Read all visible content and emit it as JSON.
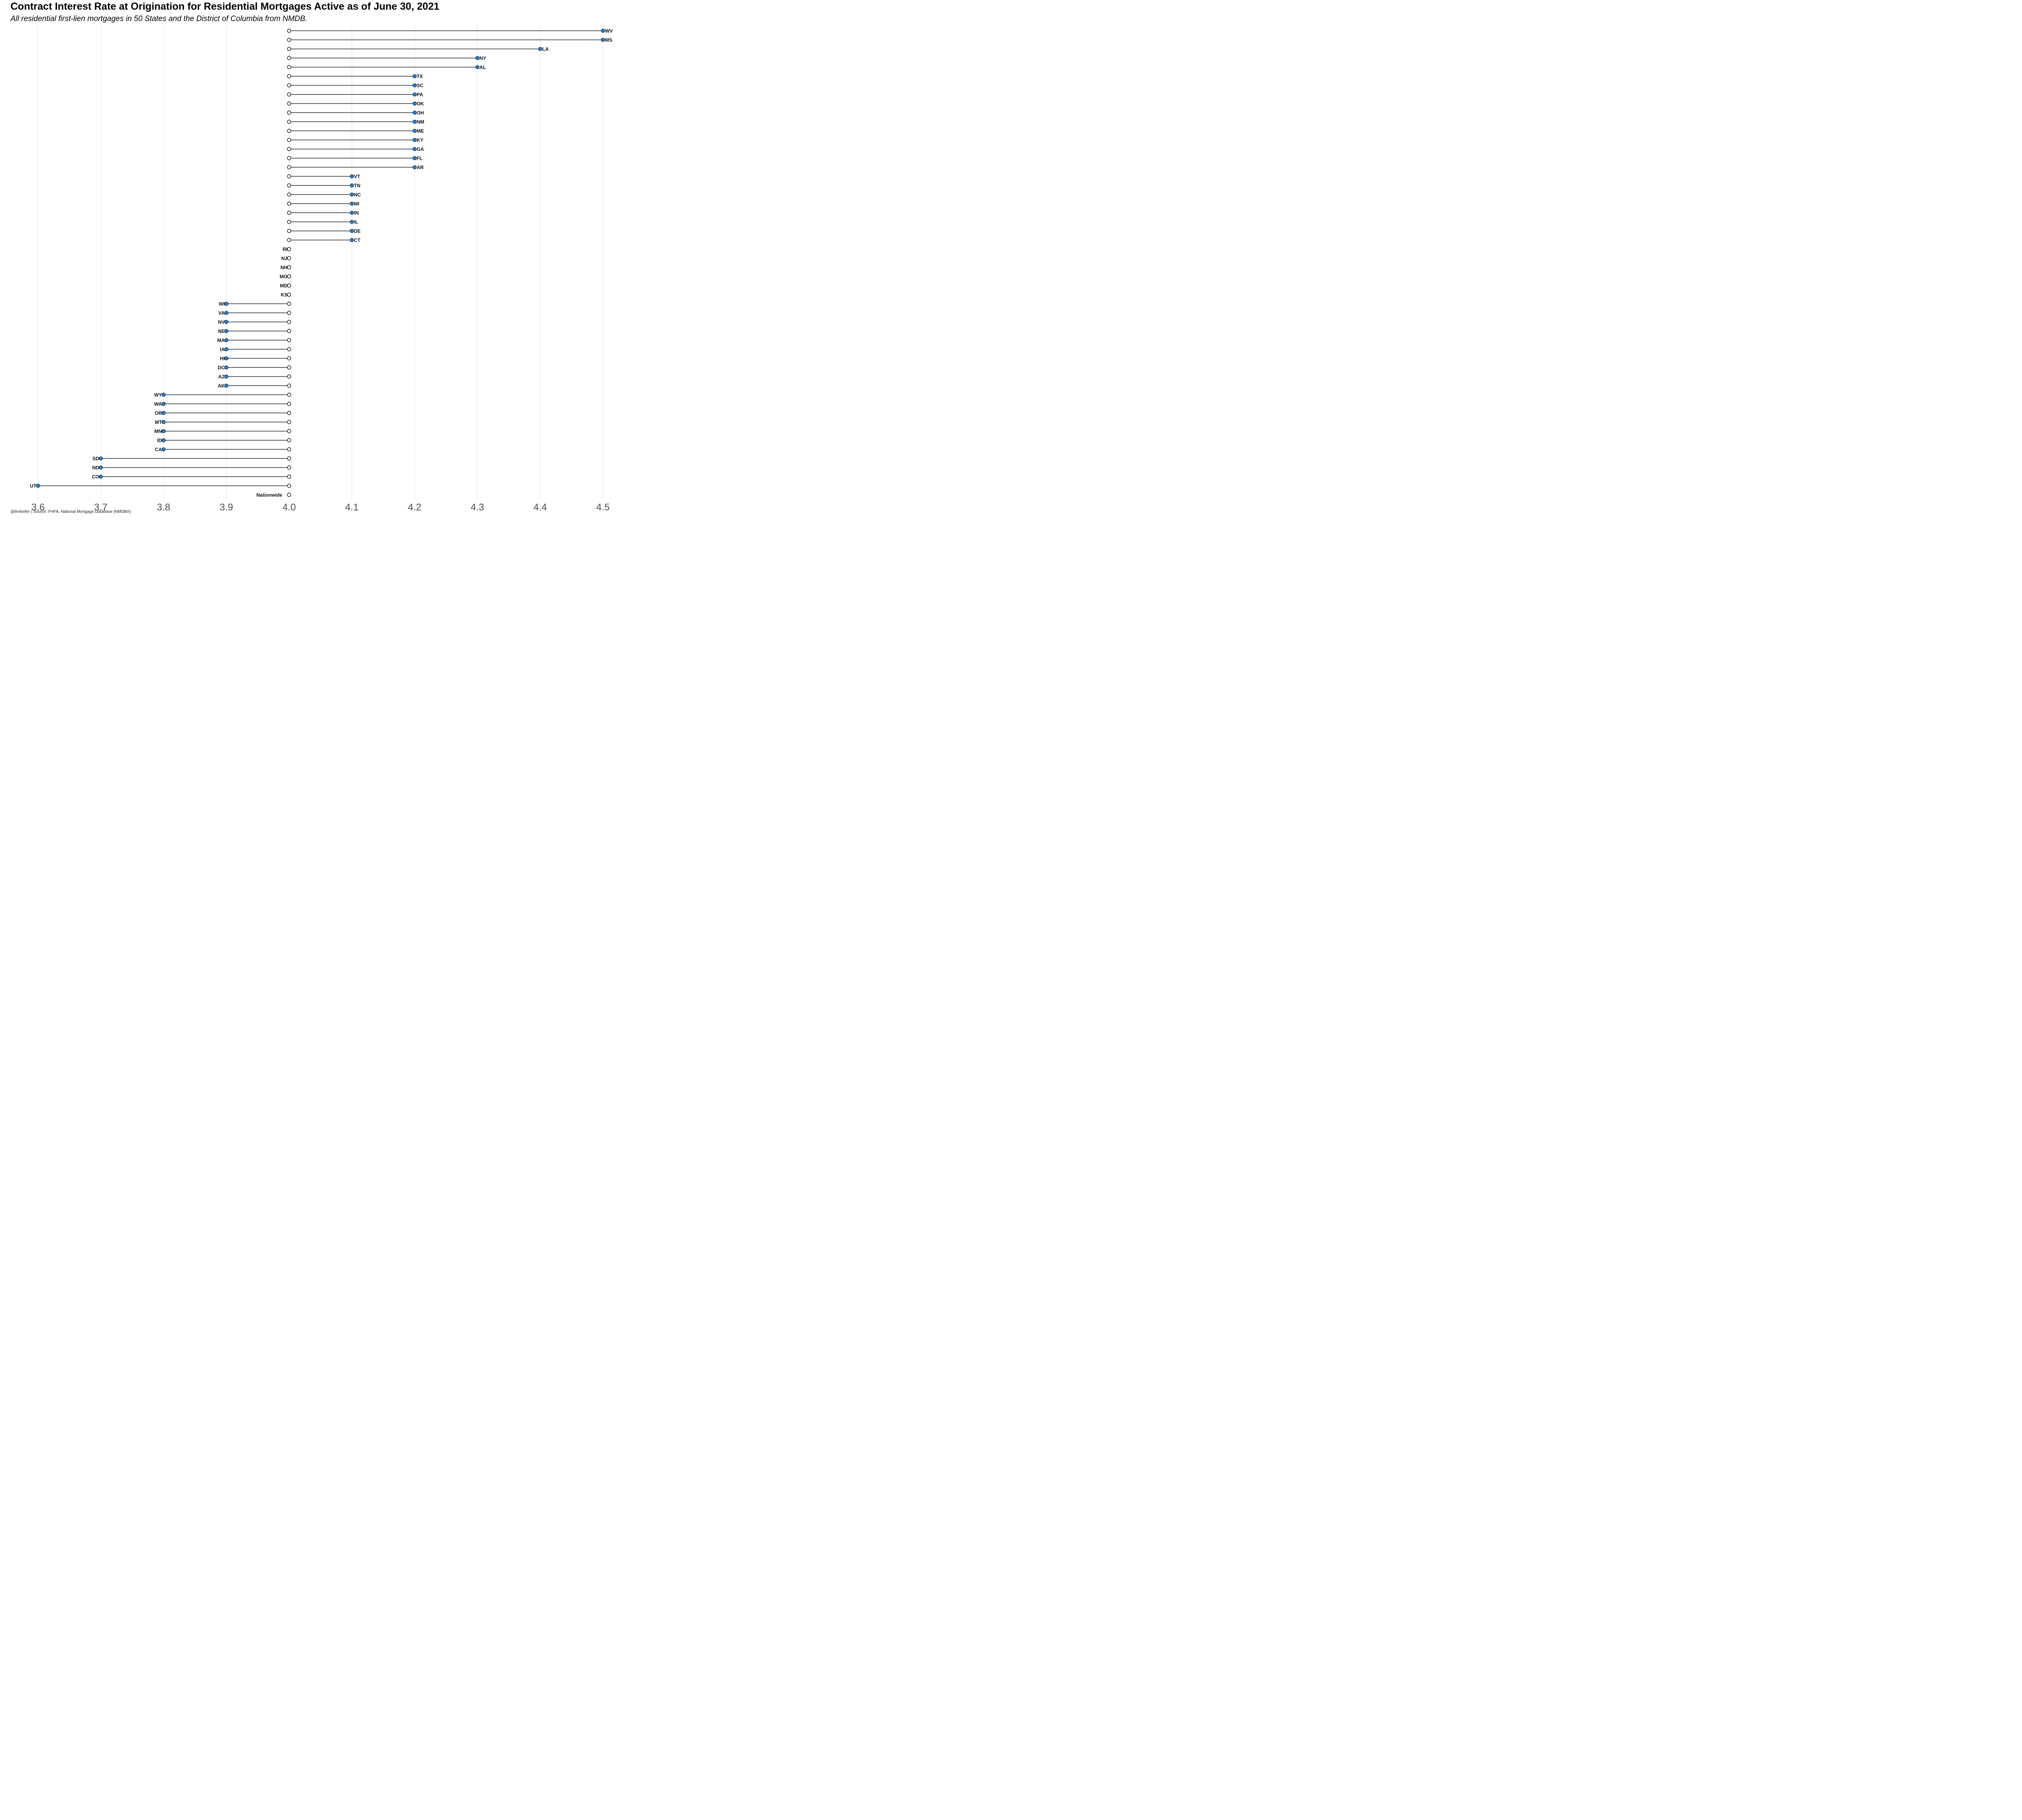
{
  "chart_data": {
    "type": "dot-range",
    "title": "Contract Interest Rate at Origination for Residential Mortgages Active as of June 30, 2021",
    "subtitle": "All residential first-lien mortgages in 50 States and the District of Columbia from NMDB.",
    "caption": "@lenkiefer | Source: FHFA, National Mortgage Database (NMDB®)",
    "baseline_label": "Nationwide",
    "baseline_value": 4.0,
    "xlim": [
      3.6,
      4.5
    ],
    "x_ticks": [
      "3.6",
      "3.7",
      "3.8",
      "3.9",
      "4.0",
      "4.1",
      "4.2",
      "4.3",
      "4.4",
      "4.5"
    ],
    "grid": true,
    "colors": {
      "point": "#1e88e5",
      "baseline_point": "#ffffff",
      "segment": "#000000",
      "grid": "#ebebeb"
    },
    "states": [
      {
        "state": "WV",
        "value": 4.5
      },
      {
        "state": "MS",
        "value": 4.5
      },
      {
        "state": "LA",
        "value": 4.4
      },
      {
        "state": "NY",
        "value": 4.3
      },
      {
        "state": "AL",
        "value": 4.3
      },
      {
        "state": "TX",
        "value": 4.2
      },
      {
        "state": "SC",
        "value": 4.2
      },
      {
        "state": "PA",
        "value": 4.2
      },
      {
        "state": "OK",
        "value": 4.2
      },
      {
        "state": "OH",
        "value": 4.2
      },
      {
        "state": "NM",
        "value": 4.2
      },
      {
        "state": "ME",
        "value": 4.2
      },
      {
        "state": "KY",
        "value": 4.2
      },
      {
        "state": "GA",
        "value": 4.2
      },
      {
        "state": "FL",
        "value": 4.2
      },
      {
        "state": "AR",
        "value": 4.2
      },
      {
        "state": "VT",
        "value": 4.1
      },
      {
        "state": "TN",
        "value": 4.1
      },
      {
        "state": "NC",
        "value": 4.1
      },
      {
        "state": "MI",
        "value": 4.1
      },
      {
        "state": "IN",
        "value": 4.1
      },
      {
        "state": "IL",
        "value": 4.1
      },
      {
        "state": "DE",
        "value": 4.1
      },
      {
        "state": "CT",
        "value": 4.1
      },
      {
        "state": "RI",
        "value": 4.0
      },
      {
        "state": "NJ",
        "value": 4.0
      },
      {
        "state": "NH",
        "value": 4.0
      },
      {
        "state": "MO",
        "value": 4.0
      },
      {
        "state": "MD",
        "value": 4.0
      },
      {
        "state": "KS",
        "value": 4.0
      },
      {
        "state": "WI",
        "value": 3.9
      },
      {
        "state": "VA",
        "value": 3.9
      },
      {
        "state": "NV",
        "value": 3.9
      },
      {
        "state": "NE",
        "value": 3.9
      },
      {
        "state": "MA",
        "value": 3.9
      },
      {
        "state": "IA",
        "value": 3.9
      },
      {
        "state": "HI",
        "value": 3.9
      },
      {
        "state": "DC",
        "value": 3.9
      },
      {
        "state": "AZ",
        "value": 3.9
      },
      {
        "state": "AK",
        "value": 3.9
      },
      {
        "state": "WY",
        "value": 3.8
      },
      {
        "state": "WA",
        "value": 3.8
      },
      {
        "state": "OR",
        "value": 3.8
      },
      {
        "state": "MT",
        "value": 3.8
      },
      {
        "state": "MN",
        "value": 3.8
      },
      {
        "state": "ID",
        "value": 3.8
      },
      {
        "state": "CA",
        "value": 3.8
      },
      {
        "state": "SD",
        "value": 3.7
      },
      {
        "state": "ND",
        "value": 3.7
      },
      {
        "state": "CO",
        "value": 3.7
      },
      {
        "state": "UT",
        "value": 3.6
      }
    ]
  }
}
